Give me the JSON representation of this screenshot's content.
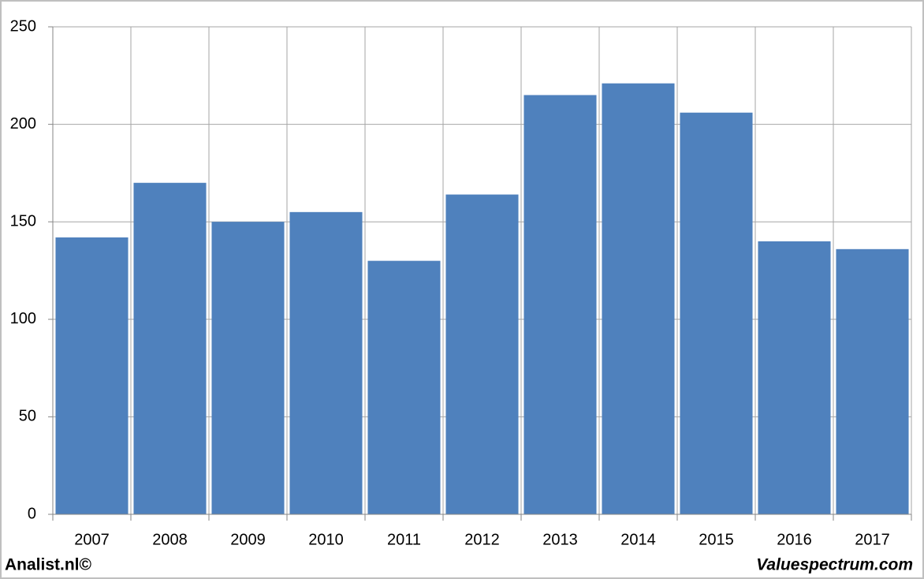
{
  "chart_data": {
    "type": "bar",
    "categories": [
      "2007",
      "2008",
      "2009",
      "2010",
      "2011",
      "2012",
      "2013",
      "2014",
      "2015",
      "2016",
      "2017"
    ],
    "values": [
      142,
      170,
      150,
      155,
      130,
      164,
      215,
      221,
      206,
      140,
      136
    ],
    "color": "#4f81bd",
    "ylim": [
      0,
      250
    ],
    "yticks": [
      0,
      50,
      100,
      150,
      200,
      250
    ],
    "grid": true,
    "source": "Analist.nl©",
    "credit": "Valuespectrum.com"
  }
}
